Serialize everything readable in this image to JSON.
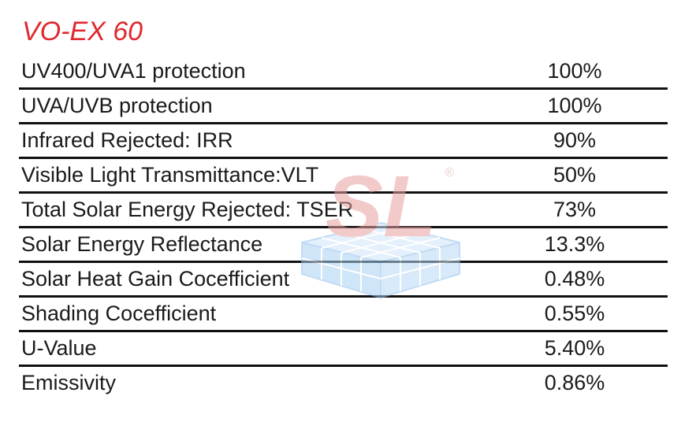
{
  "title": "VO-EX 60",
  "rows": [
    {
      "label": "UV400/UVA1 protection",
      "value": "100%"
    },
    {
      "label": "UVA/UVB protection",
      "value": "100%"
    },
    {
      "label": "Infrared Rejected: IRR",
      "value": "90%"
    },
    {
      "label": "Visible Light Transmittance:VLT",
      "value": "50%"
    },
    {
      "label": "Total Solar Energy Rejected: TSER",
      "value": "73%"
    },
    {
      "label": "Solar Energy Reflectance",
      "value": "13.3%"
    },
    {
      "label": "Solar Heat Gain Cocefficient",
      "value": "0.48%"
    },
    {
      "label": "Shading Cocefficient",
      "value": "0.55%"
    },
    {
      "label": "U-Value",
      "value": "5.40%"
    },
    {
      "label": "Emissivity",
      "value": "0.86%"
    }
  ],
  "watermark": {
    "text": "SL",
    "registered": "®",
    "text_color": "#e8a0a0",
    "grid_color": "#8fc0ec"
  }
}
